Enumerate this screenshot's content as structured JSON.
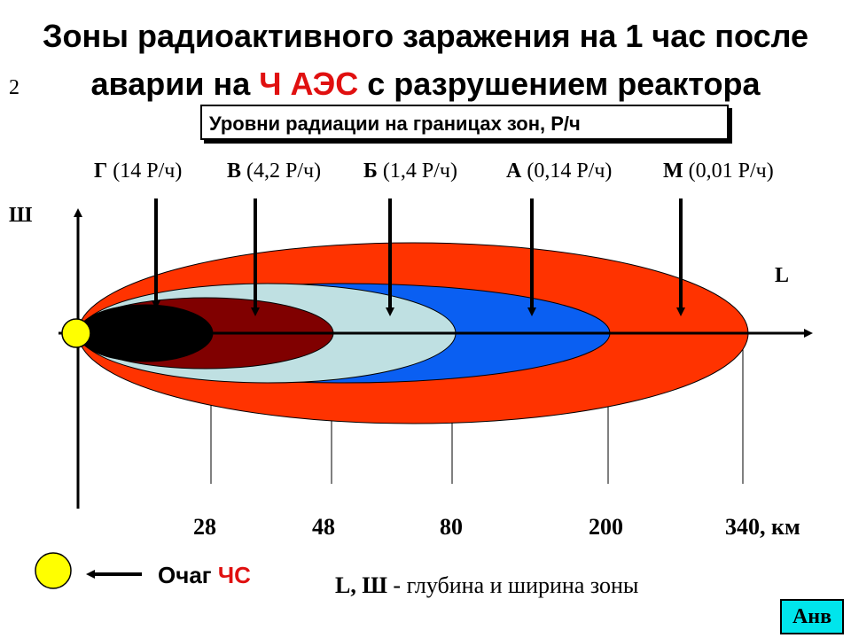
{
  "title": {
    "line1": "Зоны радиоактивного заражения на 1 час после",
    "line2_pre": "аварии на ",
    "line2_red": "Ч АЭС",
    "line2_post": " с разрушением реактора"
  },
  "slide_number": "2",
  "legend_box": "Уровни радиации на границах зон, Р/ч",
  "zones": [
    {
      "letter": "Г",
      "level": "(14 Р/ч)",
      "color": "#000000"
    },
    {
      "letter": "В",
      "level": "(4,2 Р/ч)",
      "color": "#800000"
    },
    {
      "letter": "Б",
      "level": "(1,4 Р/ч)",
      "color": "#bfe0e2"
    },
    {
      "letter": "А",
      "level": "(0,14 Р/ч)",
      "color": "#0a5ff2"
    },
    {
      "letter": "М",
      "level": "(0,01 Р/ч)",
      "color": "#ff3300"
    }
  ],
  "axes": {
    "length": "L",
    "width": "Ш"
  },
  "distances": [
    "28",
    "48",
    "80",
    "200",
    "340, км"
  ],
  "source": {
    "label": "Очаг ",
    "label_red": "ЧС",
    "color": "#ffff00"
  },
  "caption": {
    "bold": "L, Ш",
    "rest": " - глубина и ширина зоны"
  },
  "button": "Анв"
}
